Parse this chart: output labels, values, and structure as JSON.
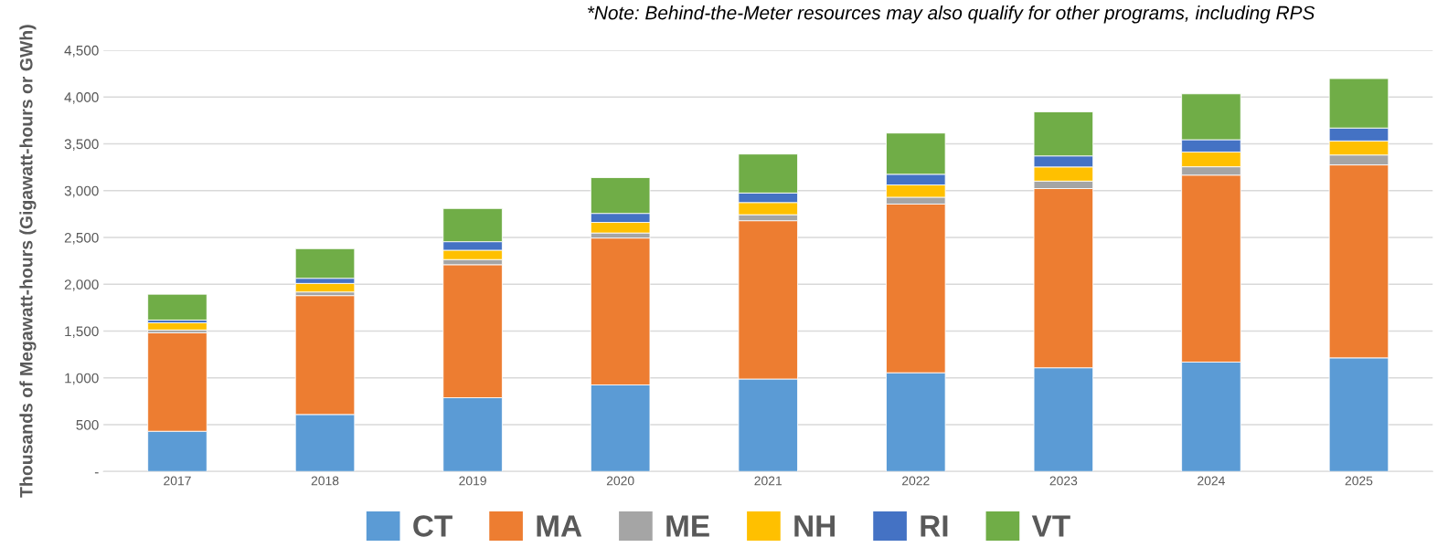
{
  "chart_data": {
    "type": "bar",
    "stacked": true,
    "ylabel": "Thousands of Megawatt-hours (Gigawatt-hours or GWh)",
    "annotations": [
      "*Note: Behind-the-Meter resources may also qualify for other programs, including RPS"
    ],
    "categories": [
      "2017",
      "2018",
      "2019",
      "2020",
      "2021",
      "2022",
      "2023",
      "2024",
      "2025"
    ],
    "series": [
      {
        "name": "CT",
        "color": "#5b9bd5",
        "values": [
          430,
          609,
          788,
          925,
          988,
          1055,
          1108,
          1169,
          1214
        ]
      },
      {
        "name": "MA",
        "color": "#ed7d31",
        "values": [
          1052,
          1270,
          1421,
          1569,
          1691,
          1802,
          1914,
          1997,
          2061
        ]
      },
      {
        "name": "ME",
        "color": "#a5a5a5",
        "values": [
          30,
          39,
          55,
          54,
          64,
          73,
          80,
          89,
          106
        ]
      },
      {
        "name": "NH",
        "color": "#ffc000",
        "values": [
          76,
          91,
          100,
          113,
          130,
          131,
          151,
          158,
          150
        ]
      },
      {
        "name": "RI",
        "color": "#4472c4",
        "values": [
          30,
          55,
          91,
          96,
          102,
          114,
          118,
          131,
          138
        ]
      },
      {
        "name": "VT",
        "color": "#70ad47",
        "values": [
          276,
          316,
          354,
          382,
          416,
          440,
          471,
          490,
          528
        ]
      }
    ],
    "ylim": [
      0,
      4500
    ],
    "yticks": [
      {
        "value": 0,
        "label": "-"
      },
      {
        "value": 500,
        "label": "500"
      },
      {
        "value": 1000,
        "label": "1,000"
      },
      {
        "value": 1500,
        "label": "1,500"
      },
      {
        "value": 2000,
        "label": "2,000"
      },
      {
        "value": 2500,
        "label": "2,500"
      },
      {
        "value": 3000,
        "label": "3,000"
      },
      {
        "value": 3500,
        "label": "3,500"
      },
      {
        "value": 4000,
        "label": "4,000"
      },
      {
        "value": 4500,
        "label": "4,500"
      }
    ],
    "grid": "y",
    "legend": "bottom"
  }
}
